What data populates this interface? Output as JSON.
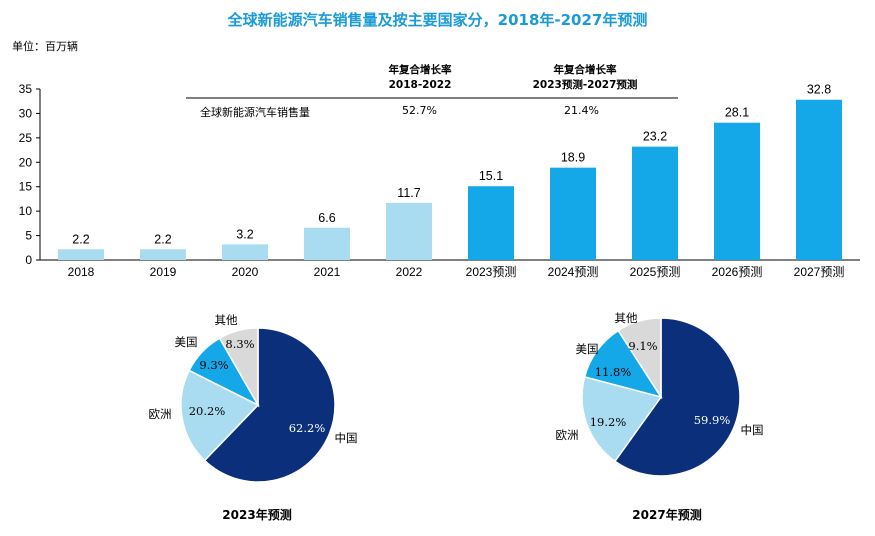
{
  "title": "全球新能源汽车销售量及按主要国家分，2018年-2027年预测",
  "unit": "单位：百万辆",
  "cagr": {
    "header1_line1": "年复合增长率",
    "header1_line2": "2018-2022",
    "header2_line1": "年复合增长率",
    "header2_line2": "2023预测-2027预测",
    "row_label": "全球新能源汽车销售量",
    "value1": "52.7%",
    "value2": "21.4%"
  },
  "chart_data": [
    {
      "type": "bar",
      "categories": [
        "2018",
        "2019",
        "2020",
        "2021",
        "2022",
        "2023预测",
        "2024预测",
        "2025预测",
        "2026预测",
        "2027预测"
      ],
      "values": [
        2.2,
        2.2,
        3.2,
        6.6,
        11.7,
        15.1,
        18.9,
        23.2,
        28.1,
        32.8
      ],
      "data_labels": [
        "2.2",
        "2.2",
        "3.2",
        "6.6",
        "11.7",
        "15.1",
        "18.9",
        "23.2",
        "28.1",
        "32.8"
      ],
      "ylim": [
        0,
        35
      ],
      "yticks": [
        "0",
        "5",
        "10",
        "15",
        "20",
        "25",
        "30",
        "35"
      ],
      "yticks_values": [
        0,
        5,
        10,
        15,
        20,
        25,
        30,
        35
      ],
      "colors": {
        "historical": "#a9dcf1",
        "forecast": "#14a8e8"
      },
      "forecast_from_index": 5
    },
    {
      "type": "pie",
      "title": "2023年预测",
      "slices": [
        {
          "label": "中国",
          "value": 62.2,
          "text": "62.2%",
          "color": "#0b2f7a"
        },
        {
          "label": "欧洲",
          "value": 20.2,
          "text": "20.2%",
          "color": "#a9dcf1"
        },
        {
          "label": "美国",
          "value": 9.3,
          "text": "9.3%",
          "color": "#14a8e8"
        },
        {
          "label": "其他",
          "value": 8.3,
          "text": "8.3%",
          "color": "#d9d9d9"
        }
      ]
    },
    {
      "type": "pie",
      "title": "2027年预测",
      "slices": [
        {
          "label": "中国",
          "value": 59.9,
          "text": "59.9%",
          "color": "#0b2f7a"
        },
        {
          "label": "欧洲",
          "value": 19.2,
          "text": "19.2%",
          "color": "#a9dcf1"
        },
        {
          "label": "美国",
          "value": 11.8,
          "text": "11.8%",
          "color": "#14a8e8"
        },
        {
          "label": "其他",
          "value": 9.1,
          "text": "9.1%",
          "color": "#d9d9d9"
        }
      ]
    }
  ]
}
